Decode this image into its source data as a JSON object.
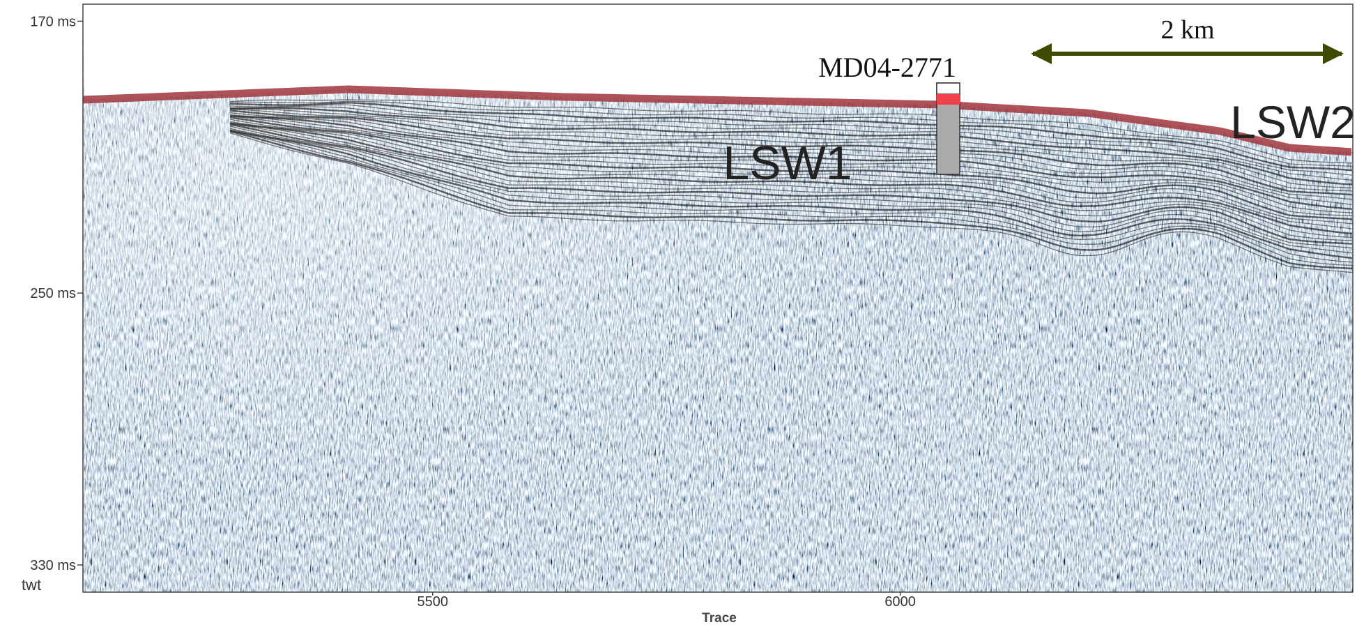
{
  "chart_data": {
    "type": "seismic-section",
    "xlabel": "Trace",
    "ylabel": "twt",
    "xlim": [
      5126,
      6484
    ],
    "xticks": [
      5500,
      6000
    ],
    "ylim": [
      165,
      338
    ],
    "yticks": [
      {
        "value": 170,
        "label": "170 ms"
      },
      {
        "value": 250,
        "label": "250 ms"
      },
      {
        "value": 330,
        "label": "330 ms"
      }
    ],
    "y_inverted": true,
    "annotations": {
      "scale": "2 km",
      "core": "MD04-2771",
      "unit1": "LSW1",
      "unit2": "LSW2"
    }
  }
}
